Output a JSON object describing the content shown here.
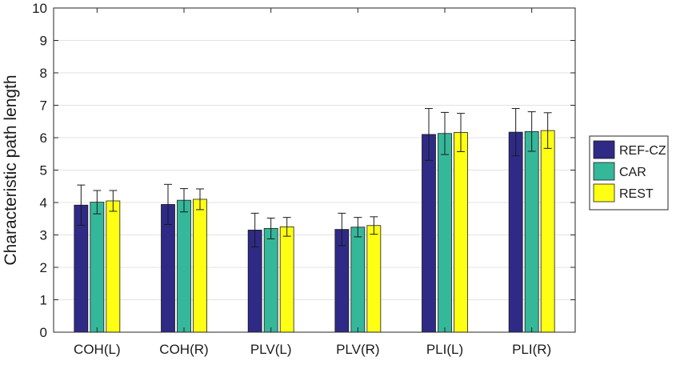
{
  "chart_data": {
    "type": "bar",
    "title": "",
    "xlabel": "",
    "ylabel": "Characteristic path length",
    "ylim": [
      0,
      10
    ],
    "yticks": [
      0,
      1,
      2,
      3,
      4,
      5,
      6,
      7,
      8,
      9,
      10
    ],
    "grid": "horizontal",
    "legend_position": "right",
    "categories": [
      "COH(L)",
      "COH(R)",
      "PLV(L)",
      "PLV(R)",
      "PLI(L)",
      "PLI(R)"
    ],
    "series": [
      {
        "name": "REF-CZ",
        "color": "#2f2a86",
        "values": [
          3.92,
          3.94,
          3.15,
          3.17,
          6.1,
          6.17
        ],
        "errors": [
          0.62,
          0.62,
          0.52,
          0.5,
          0.8,
          0.73
        ]
      },
      {
        "name": "CAR",
        "color": "#35b79a",
        "values": [
          4.01,
          4.07,
          3.2,
          3.24,
          6.13,
          6.19
        ],
        "errors": [
          0.36,
          0.36,
          0.32,
          0.3,
          0.65,
          0.61
        ]
      },
      {
        "name": "REST",
        "color": "#ffff14",
        "values": [
          4.05,
          4.1,
          3.25,
          3.29,
          6.16,
          6.22
        ],
        "errors": [
          0.32,
          0.32,
          0.29,
          0.27,
          0.59,
          0.55
        ]
      }
    ]
  }
}
